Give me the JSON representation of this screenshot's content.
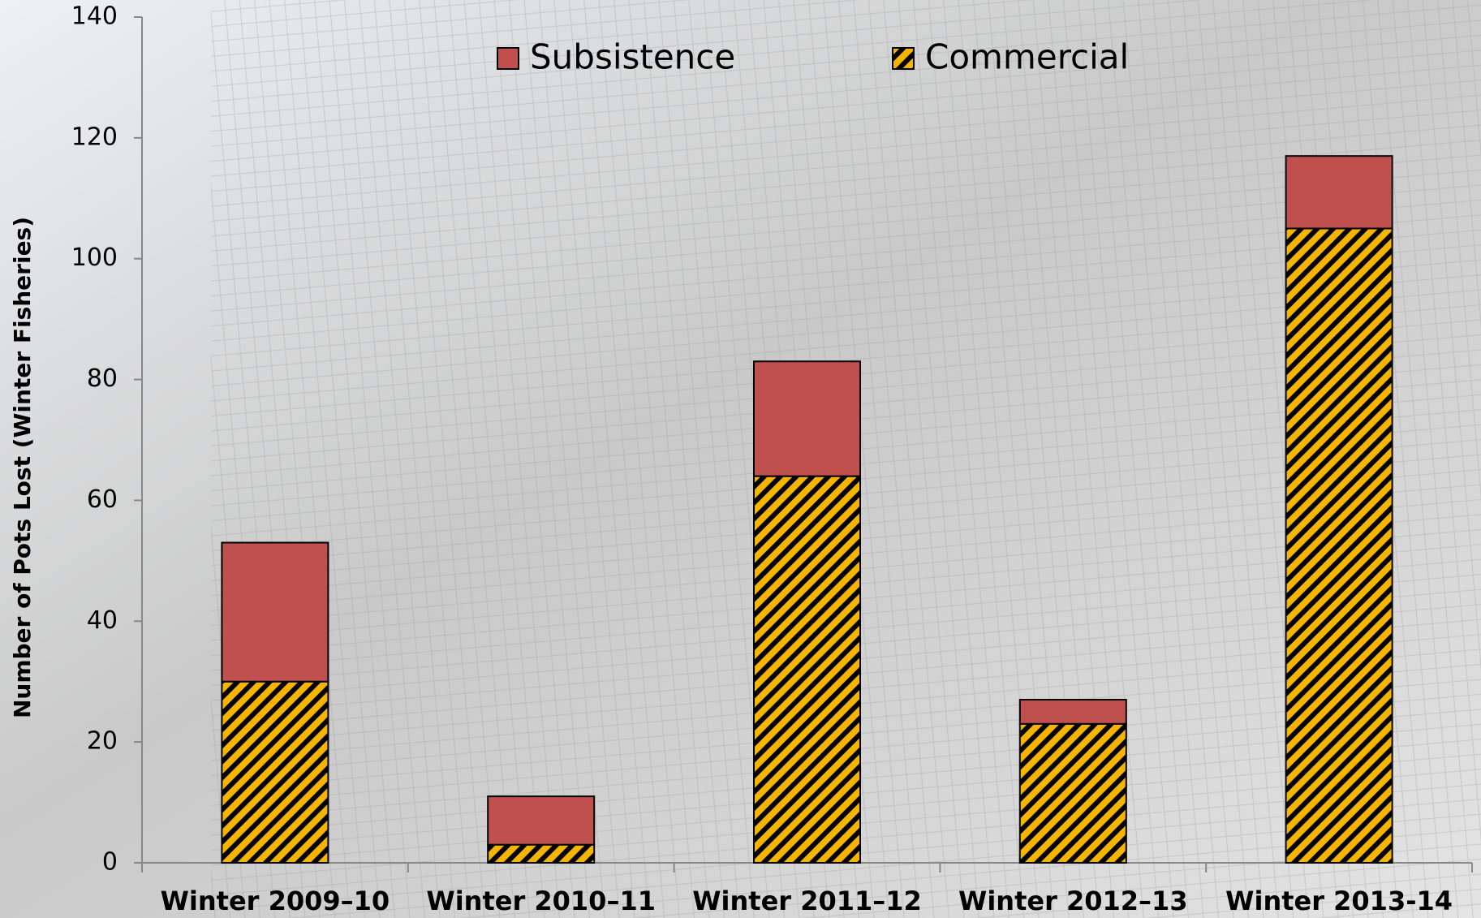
{
  "chart_data": {
    "type": "stacked_bar",
    "y_label": "Number of Pots Lost (Winter Fisheries)",
    "categories": [
      "Winter 2009–10",
      "Winter 2010–11",
      "Winter 2011–12",
      "Winter 2012–13",
      "Winter 2013-14"
    ],
    "series": [
      {
        "name": "Subsistence",
        "color": "#c0504d",
        "values": [
          23,
          8,
          19,
          4,
          12
        ]
      },
      {
        "name": "Commercial",
        "color": "#f5b400",
        "hatch": true,
        "values": [
          30,
          3,
          64,
          23,
          105
        ]
      }
    ],
    "ylim": [
      0,
      140
    ],
    "yticks": [
      0,
      20,
      40,
      60,
      80,
      100,
      120,
      140
    ],
    "legend": "top"
  }
}
